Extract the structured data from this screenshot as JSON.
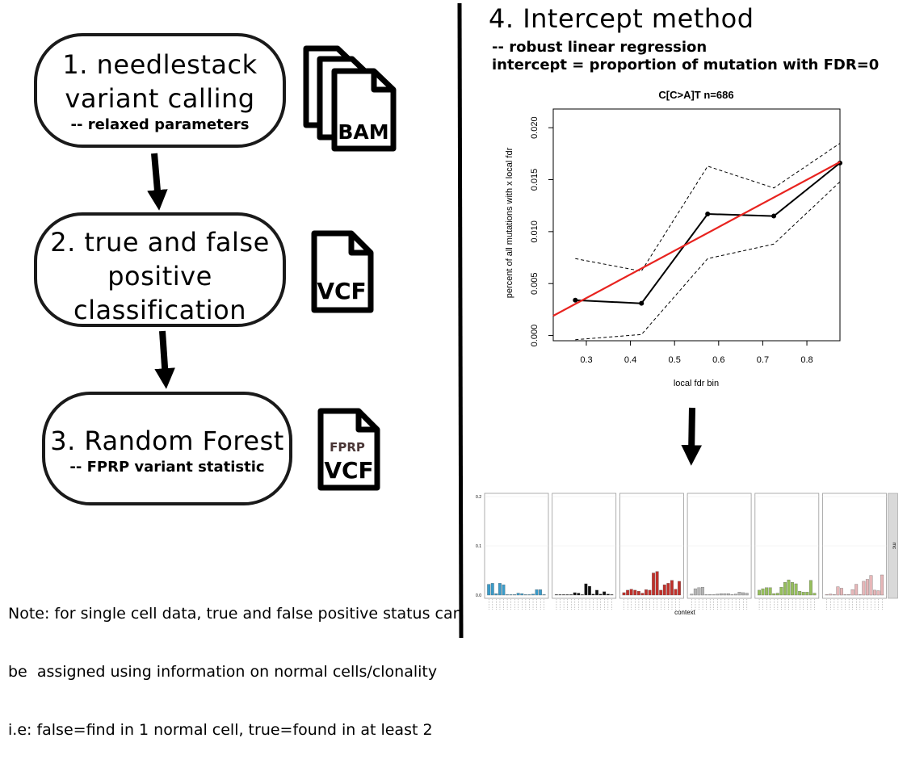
{
  "steps": [
    {
      "title_lines": [
        "1. needlestack",
        "variant calling"
      ],
      "sub": "-- relaxed parameters"
    },
    {
      "title_lines": [
        "2. true and false",
        "positive",
        "classification"
      ],
      "sub": ""
    },
    {
      "title_lines": [
        "3. Random Forest"
      ],
      "sub": "-- FPRP variant statistic"
    }
  ],
  "files": {
    "bam": "BAM",
    "vcf": "VCF",
    "fprp": "FPRP",
    "vcf2": "VCF"
  },
  "method": {
    "title": "4. Intercept method",
    "sub_lines": [
      "-- robust linear regression",
      "intercept = proportion of mutation with FDR=0"
    ]
  },
  "note_lines": [
    "Note: for single cell data, true and false positive status can",
    "be  assigned using information on normal cells/clonality",
    "i.e: false=find in 1 normal cell, true=found in at least 2"
  ],
  "chart_data": [
    {
      "type": "line",
      "title": "C[C>A]T n=686",
      "xlabel": "local fdr bin",
      "ylabel": "percent of all mutations with x local fdr",
      "xlim": [
        0.225,
        0.875
      ],
      "ylim": [
        -0.0005,
        0.0218
      ],
      "xticks": [
        "0.3",
        "0.4",
        "0.5",
        "0.6",
        "0.7",
        "0.8"
      ],
      "yticks": [
        "0.000",
        "0.005",
        "0.010",
        "0.015",
        "0.020"
      ],
      "colors": {
        "observed": "#000000",
        "regression": "#e8231f",
        "bounds": "#000000"
      },
      "series": [
        {
          "style": "solid",
          "x": [
            0.275,
            0.425,
            0.575,
            0.725,
            0.875
          ],
          "y": [
            0.0034,
            0.0031,
            0.0117,
            0.0115,
            0.0166
          ]
        },
        {
          "style": "dashed",
          "x": [
            0.275,
            0.425,
            0.575,
            0.725,
            0.875
          ],
          "y": [
            0.0074,
            0.0062,
            0.0163,
            0.0142,
            0.0185
          ]
        },
        {
          "style": "dashed",
          "x": [
            0.275,
            0.425,
            0.575,
            0.725,
            0.875
          ],
          "y": [
            -0.0004,
            0.0001,
            0.0074,
            0.0088,
            0.0148
          ]
        },
        {
          "style": "regression",
          "x": [
            0.225,
            0.875
          ],
          "y": [
            0.0019,
            0.0167
          ]
        }
      ]
    },
    {
      "type": "bar",
      "xlabel": "context",
      "strip_label": "mc",
      "yticks": [
        "0.0",
        "0.1",
        "0.2"
      ],
      "ylim": [
        0,
        0.2
      ],
      "panels": [
        {
          "color": "#3a9bc9",
          "values": [
            0.022,
            0.024,
            0.003,
            0.024,
            0.021,
            0.001,
            0.001,
            0.001,
            0.004,
            0.003,
            0.001,
            0.001,
            0.002,
            0.011,
            0.011,
            0.001
          ]
        },
        {
          "color": "#111111",
          "values": [
            0.001,
            0.001,
            0.001,
            0.001,
            0.001,
            0.005,
            0.004,
            0.001,
            0.023,
            0.018,
            0.002,
            0.01,
            0.002,
            0.007,
            0.002,
            0.001
          ]
        },
        {
          "color": "#c0302a",
          "values": [
            0.005,
            0.01,
            0.012,
            0.01,
            0.008,
            0.004,
            0.011,
            0.01,
            0.045,
            0.048,
            0.01,
            0.021,
            0.024,
            0.03,
            0.012,
            0.028
          ]
        },
        {
          "color": "#b5b5b5",
          "values": [
            0.002,
            0.013,
            0.015,
            0.016,
            0.001,
            0.001,
            0.001,
            0.002,
            0.003,
            0.003,
            0.003,
            0.001,
            0.002,
            0.006,
            0.005,
            0.004
          ]
        },
        {
          "color": "#96bf5c",
          "values": [
            0.01,
            0.013,
            0.015,
            0.015,
            0.003,
            0.004,
            0.016,
            0.026,
            0.031,
            0.026,
            0.023,
            0.008,
            0.006,
            0.006,
            0.03,
            0.004
          ]
        },
        {
          "color": "#e7b7b9",
          "values": [
            0.001,
            0.002,
            0.001,
            0.017,
            0.014,
            0.001,
            0.001,
            0.011,
            0.022,
            0.001,
            0.028,
            0.032,
            0.04,
            0.01,
            0.009,
            0.041
          ]
        }
      ]
    }
  ]
}
